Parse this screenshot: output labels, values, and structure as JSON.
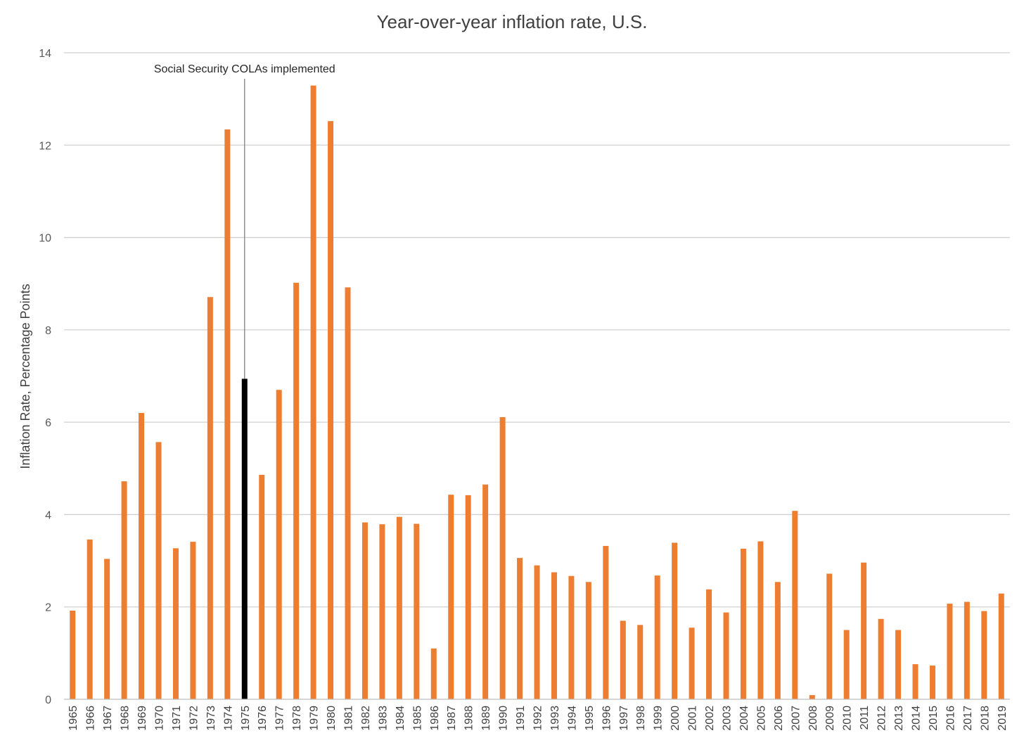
{
  "chart_data": {
    "type": "bar",
    "title": "Year-over-year inflation rate, U.S.",
    "xlabel": "",
    "ylabel": "Inflation Rate, Percentage Points",
    "ylim": [
      0,
      14
    ],
    "yticks": [
      0,
      2,
      4,
      6,
      8,
      10,
      12,
      14
    ],
    "grid": true,
    "legend": "none",
    "categories": [
      "1965",
      "1966",
      "1967",
      "1968",
      "1969",
      "1970",
      "1971",
      "1972",
      "1973",
      "1974",
      "1975",
      "1976",
      "1977",
      "1978",
      "1979",
      "1980",
      "1981",
      "1982",
      "1983",
      "1984",
      "1985",
      "1986",
      "1987",
      "1988",
      "1989",
      "1990",
      "1991",
      "1992",
      "1993",
      "1994",
      "1995",
      "1996",
      "1997",
      "1998",
      "1999",
      "2000",
      "2001",
      "2002",
      "2003",
      "2004",
      "2005",
      "2006",
      "2007",
      "2008",
      "2009",
      "2010",
      "2011",
      "2012",
      "2013",
      "2014",
      "2015",
      "2016",
      "2017",
      "2018",
      "2019"
    ],
    "values": [
      1.92,
      3.46,
      3.04,
      4.72,
      6.2,
      5.57,
      3.27,
      3.41,
      8.71,
      12.34,
      6.94,
      4.86,
      6.7,
      9.02,
      13.29,
      12.52,
      8.92,
      3.83,
      3.79,
      3.95,
      3.8,
      1.1,
      4.43,
      4.42,
      4.65,
      6.11,
      3.06,
      2.9,
      2.75,
      2.67,
      2.54,
      3.32,
      1.7,
      1.61,
      2.68,
      3.39,
      1.55,
      2.38,
      1.88,
      3.26,
      3.42,
      2.54,
      4.08,
      0.09,
      2.72,
      1.5,
      2.96,
      1.74,
      1.5,
      0.76,
      0.73,
      2.07,
      2.11,
      1.91,
      2.29
    ],
    "colors": {
      "bar": "#ed7d31",
      "highlight": "#000000",
      "annotation_line": "#808080"
    },
    "highlight_category": "1975",
    "annotation": {
      "text": "Social Security COLAs implemented",
      "category": "1975"
    }
  }
}
